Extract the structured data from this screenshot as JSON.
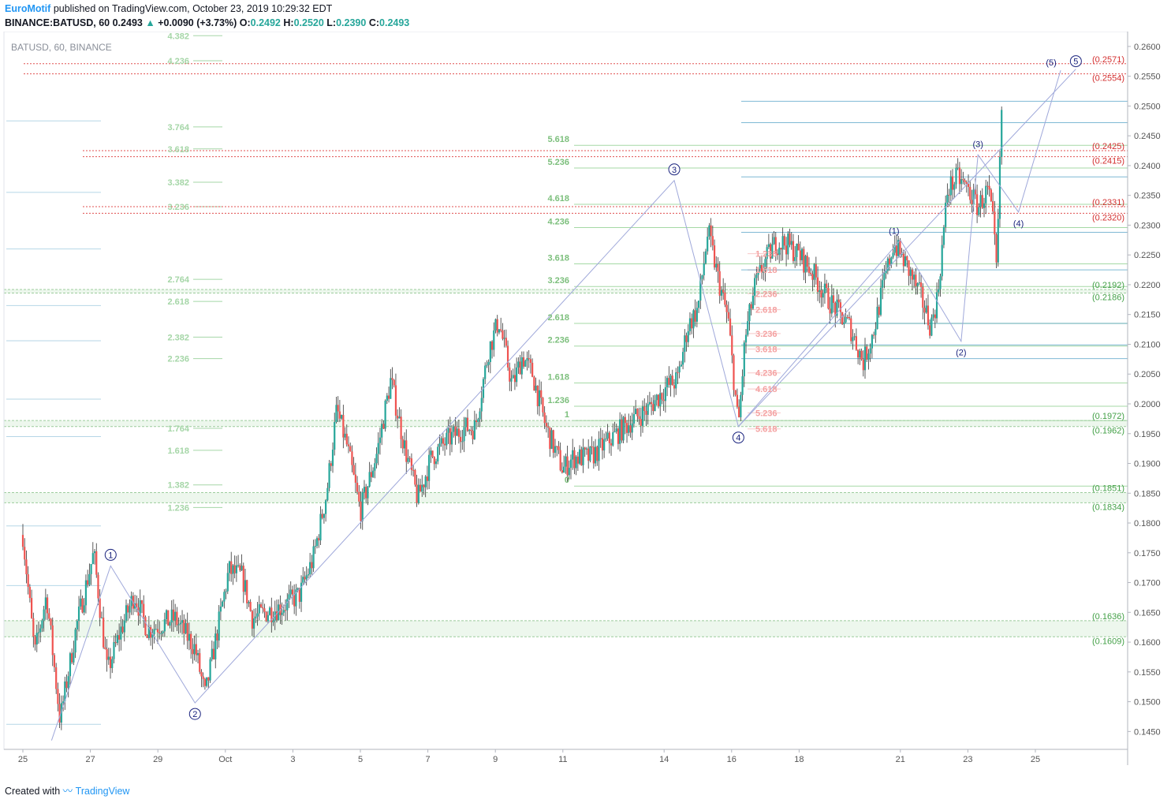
{
  "header": {
    "author": "EuroMotif",
    "published_text": "published on TradingView.com, October 23, 2019 10:29:32 EDT",
    "symbol_line": "BINANCE:BATUSD, 60",
    "last": "0.2493",
    "change": "+0.0090 (+3.73%)",
    "o_label": "O:",
    "o": "0.2492",
    "h_label": "H:",
    "h": "0.2520",
    "l_label": "L:",
    "l": "0.2390",
    "c_label": "C:",
    "c": "0.2493"
  },
  "legend": "BATUSD, 60, BINANCE",
  "footer": {
    "created_with": "Created with",
    "brand": "TradingView"
  },
  "colors": {
    "up": "#26a69a",
    "down": "#ef5350",
    "wave": "#1a237e",
    "fib_green": "#7cbf7c",
    "fib_red": "#f4a0a0",
    "support_blue": "#2a8ab8",
    "dotted_red": "#e05050"
  },
  "chart_data": {
    "type": "candlestick",
    "y_axis": {
      "min": 0.142,
      "max": 0.2625,
      "position": "right",
      "ticks": [
        "0.2600",
        "0.2550",
        "0.2500",
        "0.2450",
        "0.2400",
        "0.2350",
        "0.2300",
        "0.2250",
        "0.2200",
        "0.2150",
        "0.2100",
        "0.2050",
        "0.2000",
        "0.1950",
        "0.1900",
        "0.1850",
        "0.1800",
        "0.1750",
        "0.1700",
        "0.1650",
        "0.1600",
        "0.1550",
        "0.1500",
        "0.1450"
      ]
    },
    "x_axis": {
      "tick_labels": [
        "25",
        "27",
        "29",
        "Oct",
        "3",
        "5",
        "7",
        "9",
        "11",
        "14",
        "16",
        "18",
        "21",
        "23",
        "25"
      ],
      "tick_day_index": [
        0,
        2,
        4,
        6,
        8,
        10,
        12,
        14,
        16,
        19,
        21,
        23,
        26,
        28,
        30
      ]
    },
    "price_path": [
      [
        0,
        0.178
      ],
      [
        0.35,
        0.158
      ],
      [
        0.7,
        0.168
      ],
      [
        1.1,
        0.147
      ],
      [
        1.6,
        0.163
      ],
      [
        2.1,
        0.175
      ],
      [
        2.5,
        0.155
      ],
      [
        2.9,
        0.162
      ],
      [
        3.3,
        0.168
      ],
      [
        3.7,
        0.162
      ],
      [
        4.1,
        0.163
      ],
      [
        4.5,
        0.164
      ],
      [
        5.1,
        0.159
      ],
      [
        5.4,
        0.151
      ],
      [
        5.8,
        0.163
      ],
      [
        6.1,
        0.172
      ],
      [
        6.5,
        0.171
      ],
      [
        6.8,
        0.164
      ],
      [
        7.2,
        0.165
      ],
      [
        7.7,
        0.166
      ],
      [
        8.2,
        0.168
      ],
      [
        8.6,
        0.174
      ],
      [
        9.0,
        0.185
      ],
      [
        9.3,
        0.199
      ],
      [
        9.6,
        0.193
      ],
      [
        10.0,
        0.182
      ],
      [
        10.5,
        0.192
      ],
      [
        10.9,
        0.204
      ],
      [
        11.3,
        0.193
      ],
      [
        11.7,
        0.184
      ],
      [
        12.1,
        0.191
      ],
      [
        12.6,
        0.194
      ],
      [
        13.1,
        0.196
      ],
      [
        13.4,
        0.196
      ],
      [
        13.8,
        0.209
      ],
      [
        14.1,
        0.214
      ],
      [
        14.5,
        0.203
      ],
      [
        14.8,
        0.208
      ],
      [
        15.1,
        0.205
      ],
      [
        15.5,
        0.196
      ],
      [
        16.0,
        0.189
      ],
      [
        16.3,
        0.191
      ],
      [
        16.8,
        0.191
      ],
      [
        17.4,
        0.194
      ],
      [
        18.0,
        0.197
      ],
      [
        18.5,
        0.199
      ],
      [
        19.1,
        0.203
      ],
      [
        19.4,
        0.204
      ],
      [
        19.7,
        0.213
      ],
      [
        20.0,
        0.216
      ],
      [
        20.3,
        0.229
      ],
      [
        20.6,
        0.221
      ],
      [
        20.9,
        0.214
      ],
      [
        21.2,
        0.196
      ],
      [
        21.4,
        0.211
      ],
      [
        21.7,
        0.22
      ],
      [
        22.0,
        0.224
      ],
      [
        22.3,
        0.227
      ],
      [
        22.6,
        0.227
      ],
      [
        23.0,
        0.225
      ],
      [
        23.4,
        0.222
      ],
      [
        23.8,
        0.218
      ],
      [
        24.2,
        0.215
      ],
      [
        24.5,
        0.213
      ],
      [
        24.9,
        0.207
      ],
      [
        25.2,
        0.212
      ],
      [
        25.5,
        0.22
      ],
      [
        25.8,
        0.227
      ],
      [
        26.2,
        0.223
      ],
      [
        26.6,
        0.218
      ],
      [
        26.9,
        0.213
      ],
      [
        27.1,
        0.218
      ],
      [
        27.4,
        0.236
      ],
      [
        27.7,
        0.238
      ],
      [
        28.0,
        0.236
      ],
      [
        28.3,
        0.233
      ],
      [
        28.6,
        0.236
      ],
      [
        28.75,
        0.23
      ],
      [
        28.85,
        0.222
      ],
      [
        29.0,
        0.2493
      ]
    ],
    "wave_counts": [
      {
        "label": "1",
        "style": "circle",
        "day": 2.6,
        "price": 0.1728
      },
      {
        "label": "2",
        "style": "circle",
        "day": 5.1,
        "price": 0.1498
      },
      {
        "label": "3",
        "style": "circle",
        "day": 19.3,
        "price": 0.2375
      },
      {
        "label": "4",
        "style": "circle",
        "day": 21.2,
        "price": 0.1962
      },
      {
        "label": "5",
        "style": "circle",
        "day": 31.2,
        "price": 0.2562
      },
      {
        "label": "(1)",
        "style": "paren",
        "day": 26.0,
        "price": 0.2275
      },
      {
        "label": "(2)",
        "style": "paren",
        "day": 27.8,
        "price": 0.2105
      },
      {
        "label": "(3)",
        "style": "paren",
        "day": 28.3,
        "price": 0.2418
      },
      {
        "label": "(4)",
        "style": "paren",
        "day": 29.5,
        "price": 0.2322
      },
      {
        "label": "(5)",
        "style": "paren",
        "day": 30.75,
        "price": 0.256
      }
    ],
    "price_levels": [
      {
        "label": "(0.2571)",
        "value": 0.2571,
        "style": "red-dotted"
      },
      {
        "label": "(0.2554)",
        "value": 0.2554,
        "style": "red-dotted"
      },
      {
        "label": "(0.2425)",
        "value": 0.2425,
        "style": "red-dotted"
      },
      {
        "label": "(0.2415)",
        "value": 0.2415,
        "style": "red-dotted"
      },
      {
        "label": "(0.2331)",
        "value": 0.2331,
        "style": "red-dotted"
      },
      {
        "label": "(0.2320)",
        "value": 0.232,
        "style": "red-dotted"
      },
      {
        "label": "(0.2192)",
        "value": 0.2192,
        "style": "green"
      },
      {
        "label": "(0.2186)",
        "value": 0.2186,
        "style": "green"
      },
      {
        "label": "(0.1972)",
        "value": 0.1972,
        "style": "green"
      },
      {
        "label": "(0.1962)",
        "value": 0.1962,
        "style": "green"
      },
      {
        "label": "(0.1851)",
        "value": 0.1851,
        "style": "green"
      },
      {
        "label": "(0.1834)",
        "value": 0.1834,
        "style": "green"
      },
      {
        "label": "(0.1636)",
        "value": 0.1636,
        "style": "green"
      },
      {
        "label": "(0.1609)",
        "value": 0.1609,
        "style": "green"
      }
    ],
    "fib_left": {
      "labels": [
        [
          "4.382",
          0.2618
        ],
        [
          "4.236",
          0.2576
        ],
        [
          "3.764",
          0.2465
        ],
        [
          "3.618",
          0.2428
        ],
        [
          "3.382",
          0.2372
        ],
        [
          "3.236",
          0.2331
        ],
        [
          "2.764",
          0.2209
        ],
        [
          "2.618",
          0.2172
        ],
        [
          "2.382",
          0.2112
        ],
        [
          "2.236",
          0.2076
        ],
        [
          "1.764",
          0.1959
        ],
        [
          "1.618",
          0.1922
        ],
        [
          "1.382",
          0.1864
        ],
        [
          "1.236",
          0.1826
        ]
      ]
    },
    "fib_mid": {
      "labels": [
        [
          "5.618",
          0.2434
        ],
        [
          "5.236",
          0.2396
        ],
        [
          "4.618",
          0.2335
        ],
        [
          "4.236",
          0.2296
        ],
        [
          "3.618",
          0.2235
        ],
        [
          "3.236",
          0.2197
        ],
        [
          "2.618",
          0.2135
        ],
        [
          "2.236",
          0.2097
        ],
        [
          "1.618",
          0.2035
        ],
        [
          "1.236",
          0.1996
        ],
        [
          "1",
          0.1972
        ],
        [
          "0",
          0.1862
        ]
      ]
    },
    "fib_red": {
      "labels": [
        [
          "1.236",
          0.2252
        ],
        [
          "1.618",
          0.2225
        ],
        [
          "2.236",
          0.2185
        ],
        [
          "2.618",
          0.2158
        ],
        [
          "3.236",
          0.2118
        ],
        [
          "3.618",
          0.2092
        ],
        [
          "4.236",
          0.2052
        ],
        [
          "4.618",
          0.2025
        ],
        [
          "5.236",
          0.1985
        ],
        [
          "5.618",
          0.1958
        ]
      ]
    }
  }
}
